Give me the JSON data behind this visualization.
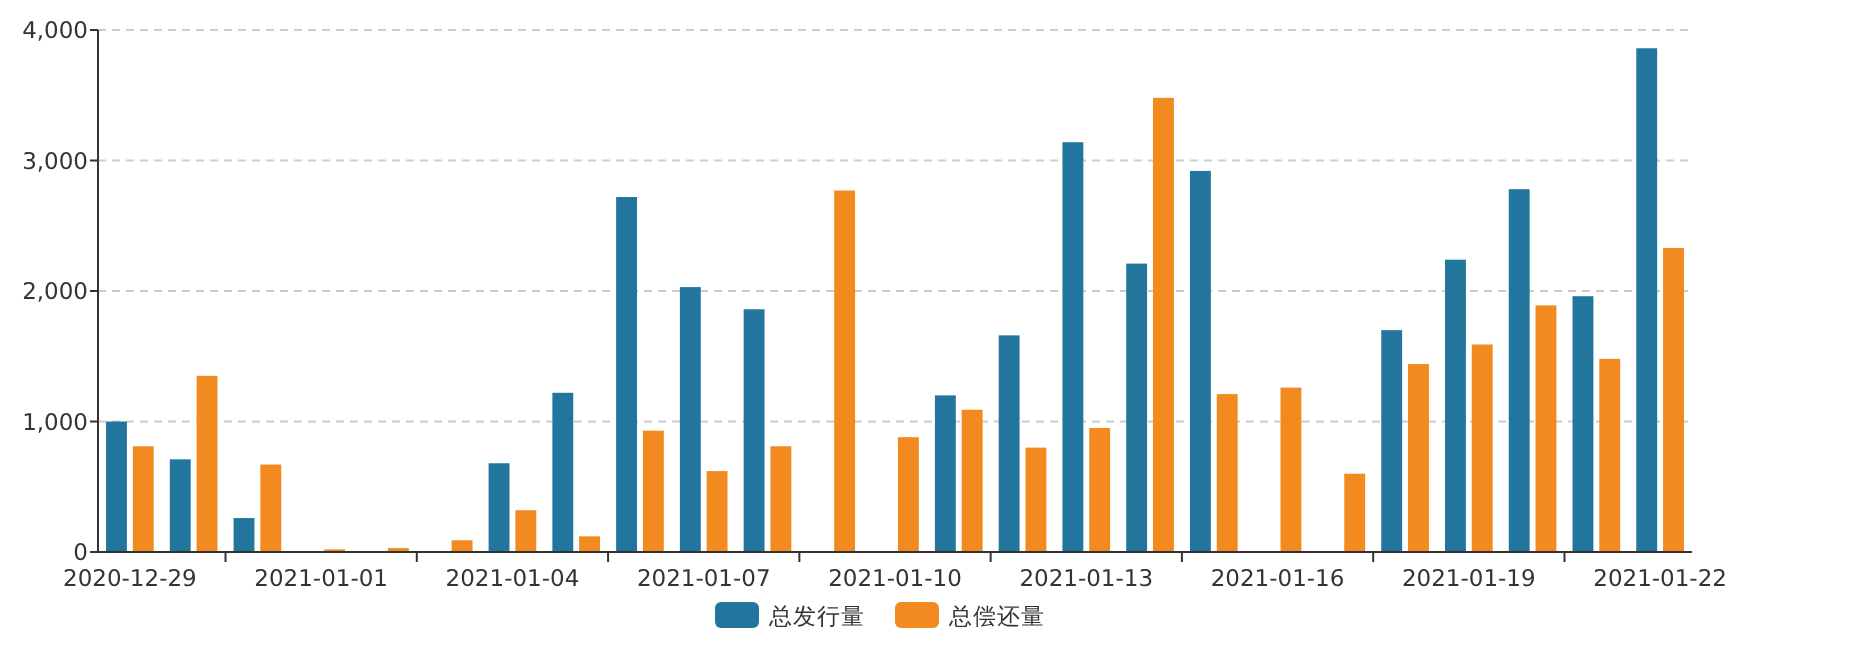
{
  "chart_data": {
    "type": "bar",
    "categories": [
      "2020-12-29",
      null,
      null,
      "2021-01-01",
      null,
      null,
      "2021-01-04",
      null,
      null,
      "2021-01-07",
      null,
      null,
      "2021-01-10",
      null,
      null,
      "2021-01-13",
      null,
      null,
      "2021-01-16",
      null,
      null,
      "2021-01-19",
      null,
      null,
      "2021-01-22"
    ],
    "series": [
      {
        "name": "总发行量",
        "color": "#22769e",
        "values": [
          1000,
          710,
          260,
          null,
          null,
          null,
          680,
          1220,
          2720,
          2030,
          1860,
          null,
          null,
          1200,
          1660,
          3140,
          2210,
          2920,
          null,
          null,
          1700,
          2240,
          2780,
          1960,
          3860
        ]
      },
      {
        "name": "总偿还量",
        "color": "#f28a1f",
        "values": [
          810,
          1350,
          670,
          20,
          30,
          90,
          320,
          120,
          930,
          620,
          810,
          2770,
          880,
          1090,
          800,
          950,
          3480,
          1210,
          1260,
          600,
          1440,
          1590,
          1890,
          1480,
          2330
        ]
      }
    ],
    "ylim": [
      0,
      4000
    ],
    "yticks": [
      {
        "value": 0,
        "label": "0"
      },
      {
        "value": 1000,
        "label": "1,000"
      },
      {
        "value": 2000,
        "label": "2,000"
      },
      {
        "value": 3000,
        "label": "3,000"
      },
      {
        "value": 4000,
        "label": "4,000"
      }
    ],
    "grid": "y",
    "legend": "bottom"
  }
}
